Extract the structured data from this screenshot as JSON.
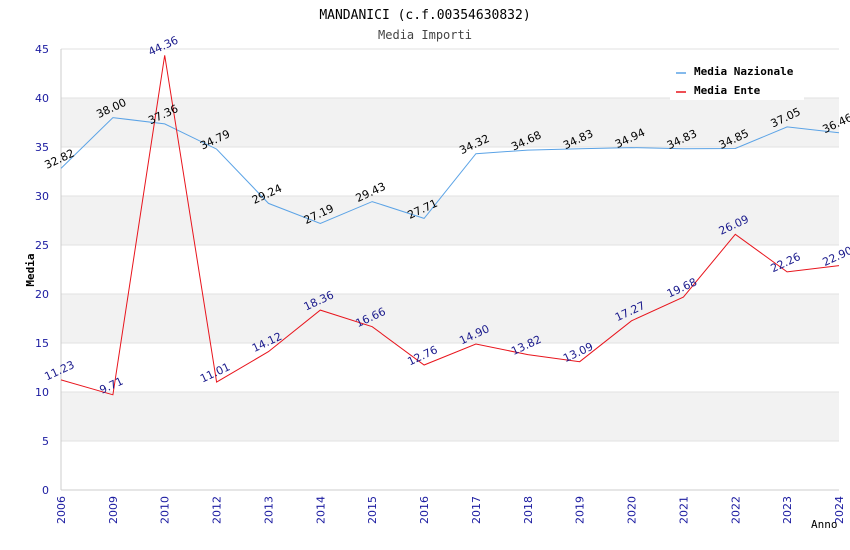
{
  "chart_data": {
    "type": "line",
    "title": "MANDANICI (c.f.00354630832)",
    "subtitle": "Media Importi",
    "xlabel": "Anno",
    "ylabel": "Media",
    "ylim": [
      0,
      45
    ],
    "yticks": [
      0,
      5,
      10,
      15,
      20,
      25,
      30,
      35,
      40,
      45
    ],
    "categories": [
      "2006",
      "2009",
      "2010",
      "2012",
      "2013",
      "2014",
      "2015",
      "2016",
      "2017",
      "2018",
      "2019",
      "2020",
      "2021",
      "2022",
      "2023",
      "2024"
    ],
    "legend_position": "top-right",
    "series": [
      {
        "name": "Media Nazionale",
        "color": "#5ba3e6",
        "label_color": "#000000",
        "values": [
          32.82,
          38.0,
          37.36,
          34.79,
          29.24,
          27.19,
          29.43,
          27.71,
          34.32,
          34.68,
          34.83,
          34.94,
          34.83,
          34.85,
          37.05,
          36.46
        ],
        "labels": [
          "32.82",
          "38.00",
          "37.36",
          "34.79",
          "29.24",
          "27.19",
          "29.43",
          "27.71",
          "34.32",
          "34.68",
          "34.83",
          "34.94",
          "34.83",
          "34.85",
          "37.05",
          "36.46"
        ]
      },
      {
        "name": "Media Ente",
        "color": "#e8141c",
        "label_color": "#1a1a8c",
        "values": [
          11.23,
          9.71,
          44.36,
          11.01,
          14.12,
          18.36,
          16.66,
          12.76,
          14.9,
          13.82,
          13.09,
          17.27,
          19.68,
          26.09,
          22.26,
          22.9
        ],
        "labels": [
          "11.23",
          "9.71",
          "44.36",
          "11.01",
          "14.12",
          "18.36",
          "16.66",
          "12.76",
          "14.90",
          "13.82",
          "13.09",
          "17.27",
          "19.68",
          "26.09",
          "22.26",
          "22.90"
        ]
      }
    ]
  }
}
